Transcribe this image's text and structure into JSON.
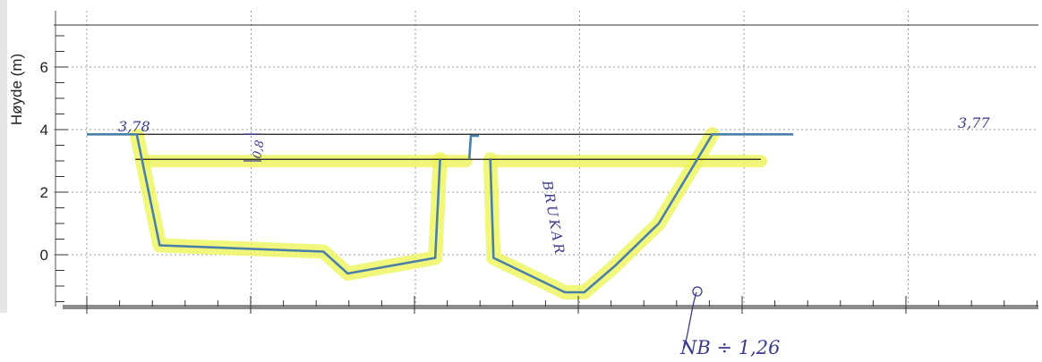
{
  "chart_data": {
    "type": "line",
    "ylabel": "Høyde (m)",
    "xlabel": "",
    "ylim": [
      -1.7,
      7.4
    ],
    "yticks": [
      0,
      2,
      4,
      6
    ],
    "ytick_labels": [
      "0",
      "2",
      "4",
      "6"
    ],
    "grid": true,
    "series": [
      {
        "name": "",
        "style": "blue profile",
        "x": [
          0,
          1.55,
          1.55,
          2.25,
          7.3,
          8.05,
          10.75,
          10.9,
          11.8,
          11.85,
          12.1,
          12.45,
          12.55,
          14.75,
          15.35,
          16.3,
          17.65,
          19.3,
          20.6,
          20.85,
          21.8
        ],
        "y": [
          3.85,
          3.85,
          3.8,
          0.3,
          0.1,
          -0.6,
          -0.1,
          3.05,
          3.05,
          3.8,
          3.8,
          3.05,
          -0.1,
          -1.2,
          -1.2,
          -0.35,
          1.0,
          3.85,
          3.85,
          3.85,
          3.85
        ]
      },
      {
        "name": "",
        "style": "thin black reference line",
        "x": [
          1.5,
          21.3
        ],
        "y": [
          3.85,
          3.85
        ]
      },
      {
        "name": "",
        "style": "thin black water line",
        "x": [
          1.5,
          20.8
        ],
        "y": [
          3.05,
          3.05
        ]
      }
    ],
    "annotations": {
      "left_level": "3,78",
      "right_level": "3,77",
      "depth": "0,8",
      "bridge": "BRUKAR",
      "note": "NB ÷ 1,26"
    }
  },
  "colors": {
    "profile": "#4a7fa8",
    "highlight": "#eef55a",
    "ink": "#3a3a8c",
    "grid": "#9a9a9a"
  }
}
